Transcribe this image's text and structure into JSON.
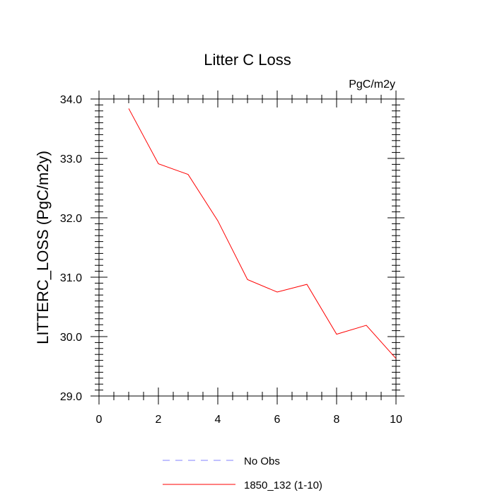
{
  "chart_data": {
    "type": "line",
    "title": "Litter C Loss",
    "units_label": "PgC/m2y",
    "xlabel": "",
    "ylabel": "LITTERC_LOSS  (PgC/m2y)",
    "xlim": [
      0,
      10
    ],
    "ylim": [
      29.0,
      34.0
    ],
    "x_ticks": [
      "0",
      "2",
      "4",
      "6",
      "8",
      "10"
    ],
    "y_ticks": [
      "29.0",
      "30.0",
      "31.0",
      "32.0",
      "33.0",
      "34.0"
    ],
    "grid": false,
    "legend_position": "bottom",
    "series": [
      {
        "name": "1850_132 (1-10)",
        "color": "#ff0000",
        "style": "solid",
        "x": [
          1,
          2,
          3,
          4,
          5,
          6,
          7,
          8,
          9,
          10
        ],
        "values": [
          33.84,
          32.91,
          32.73,
          31.95,
          30.96,
          30.75,
          30.88,
          30.04,
          30.19,
          29.63
        ]
      }
    ],
    "legend": [
      {
        "label": "No Obs",
        "color": "#8080ff",
        "style": "dashed"
      },
      {
        "label": "1850_132 (1-10)",
        "color": "#ff0000",
        "style": "solid"
      }
    ]
  }
}
